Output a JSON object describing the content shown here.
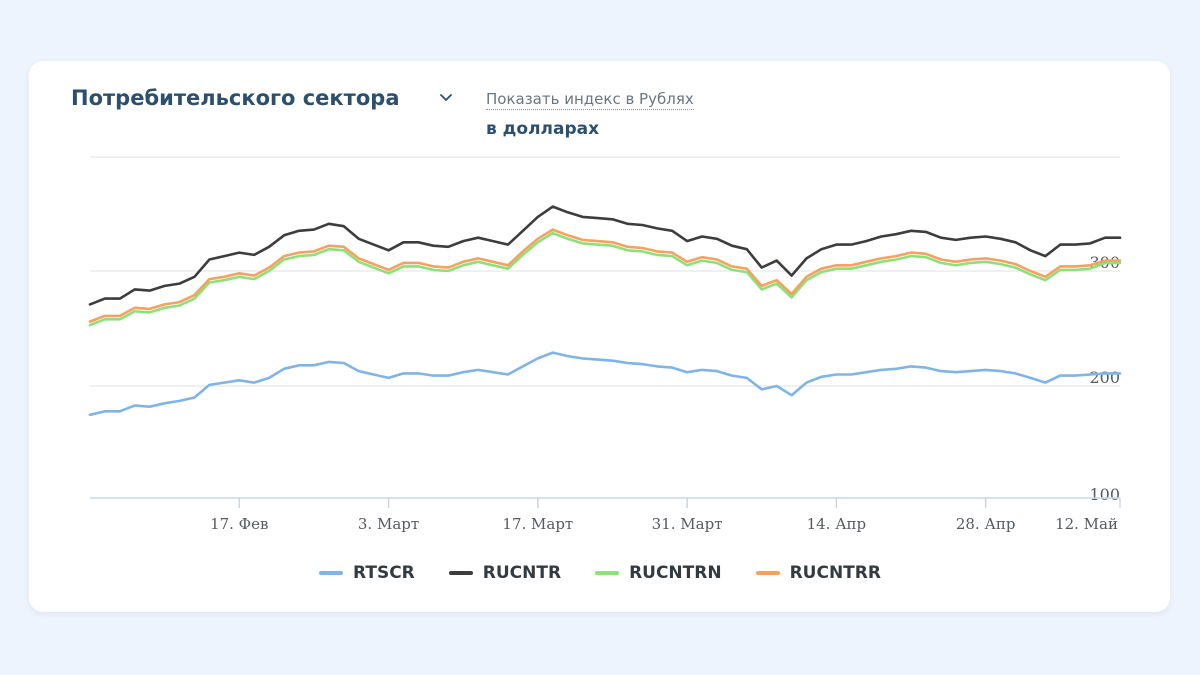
{
  "header": {
    "sector_title": "Потребительского сектора",
    "currency_toggle_link": "Показать индекс в Рублях",
    "currency_active": "в долларах"
  },
  "colors": {
    "background": "#eef4fd",
    "card": "#ffffff",
    "title": "#2d4f6e",
    "RTSCR": "#7fb4e8",
    "RUCNTR": "#3d3d3d",
    "RUCNTRN": "#8ee07a",
    "RUCNTRR": "#f5a15f"
  },
  "icons": {
    "dropdown": "chevron-down-icon"
  },
  "chart_data": {
    "type": "line",
    "title": "",
    "xlabel": "",
    "ylabel": "",
    "ylim": [
      100,
      350
    ],
    "y_ticks": [
      100,
      200,
      300
    ],
    "grid": true,
    "legend_position": "bottom-center",
    "x_tick_labels": [
      "17. Фев",
      "3. Март",
      "17. Март",
      "31. Март",
      "14. Апр",
      "28. Апр",
      "12. Май"
    ],
    "x_tick_index": [
      10,
      20,
      30,
      40,
      50,
      60,
      69
    ],
    "series": [
      {
        "name": "RTSCR",
        "color": "#7fb4e8",
        "values": [
          175,
          178,
          178,
          183,
          182,
          185,
          187,
          190,
          201,
          203,
          205,
          203,
          207,
          215,
          218,
          218,
          221,
          220,
          213,
          210,
          207,
          211,
          211,
          209,
          209,
          212,
          214,
          212,
          210,
          217,
          224,
          229,
          226,
          224,
          223,
          222,
          220,
          219,
          217,
          216,
          212,
          214,
          213,
          209,
          207,
          197,
          200,
          192,
          203,
          208,
          210,
          210,
          212,
          214,
          215,
          217,
          216,
          213,
          212,
          213,
          214,
          213,
          211,
          207,
          203,
          209,
          209,
          210,
          211,
          211
        ]
      },
      {
        "name": "RUCNTR",
        "color": "#3d3d3d",
        "values": [
          271,
          276,
          276,
          284,
          283,
          287,
          289,
          295,
          310,
          313,
          316,
          314,
          321,
          331,
          335,
          336,
          341,
          339,
          328,
          323,
          318,
          325,
          325,
          322,
          321,
          326,
          329,
          326,
          323,
          335,
          347,
          356,
          351,
          347,
          346,
          345,
          341,
          340,
          337,
          335,
          326,
          330,
          328,
          322,
          319,
          303,
          309,
          296,
          311,
          319,
          323,
          323,
          326,
          330,
          332,
          335,
          334,
          329,
          327,
          329,
          330,
          328,
          325,
          318,
          313,
          323,
          323,
          324,
          329,
          329
        ]
      },
      {
        "name": "RUCNTRN",
        "color": "#8ee07a",
        "values": [
          253,
          258,
          258,
          265,
          264,
          268,
          270,
          276,
          290,
          292,
          295,
          293,
          300,
          310,
          313,
          314,
          319,
          318,
          308,
          303,
          298,
          304,
          304,
          301,
          300,
          305,
          308,
          305,
          302,
          314,
          325,
          333,
          328,
          324,
          323,
          322,
          318,
          317,
          314,
          313,
          305,
          309,
          307,
          301,
          299,
          284,
          289,
          277,
          292,
          299,
          302,
          302,
          305,
          308,
          310,
          313,
          312,
          307,
          305,
          307,
          308,
          306,
          303,
          297,
          292,
          301,
          301,
          302,
          307,
          307
        ]
      },
      {
        "name": "RUCNTRR",
        "color": "#f5a15f",
        "values": [
          256,
          261,
          261,
          268,
          267,
          271,
          273,
          279,
          293,
          295,
          298,
          296,
          303,
          313,
          316,
          317,
          322,
          321,
          311,
          306,
          301,
          307,
          307,
          304,
          303,
          308,
          311,
          308,
          305,
          317,
          328,
          336,
          331,
          327,
          326,
          325,
          321,
          320,
          317,
          316,
          308,
          312,
          310,
          304,
          302,
          287,
          292,
          280,
          295,
          302,
          305,
          305,
          308,
          311,
          313,
          316,
          315,
          310,
          308,
          310,
          311,
          309,
          306,
          300,
          295,
          304,
          304,
          305,
          309,
          309
        ]
      }
    ]
  }
}
